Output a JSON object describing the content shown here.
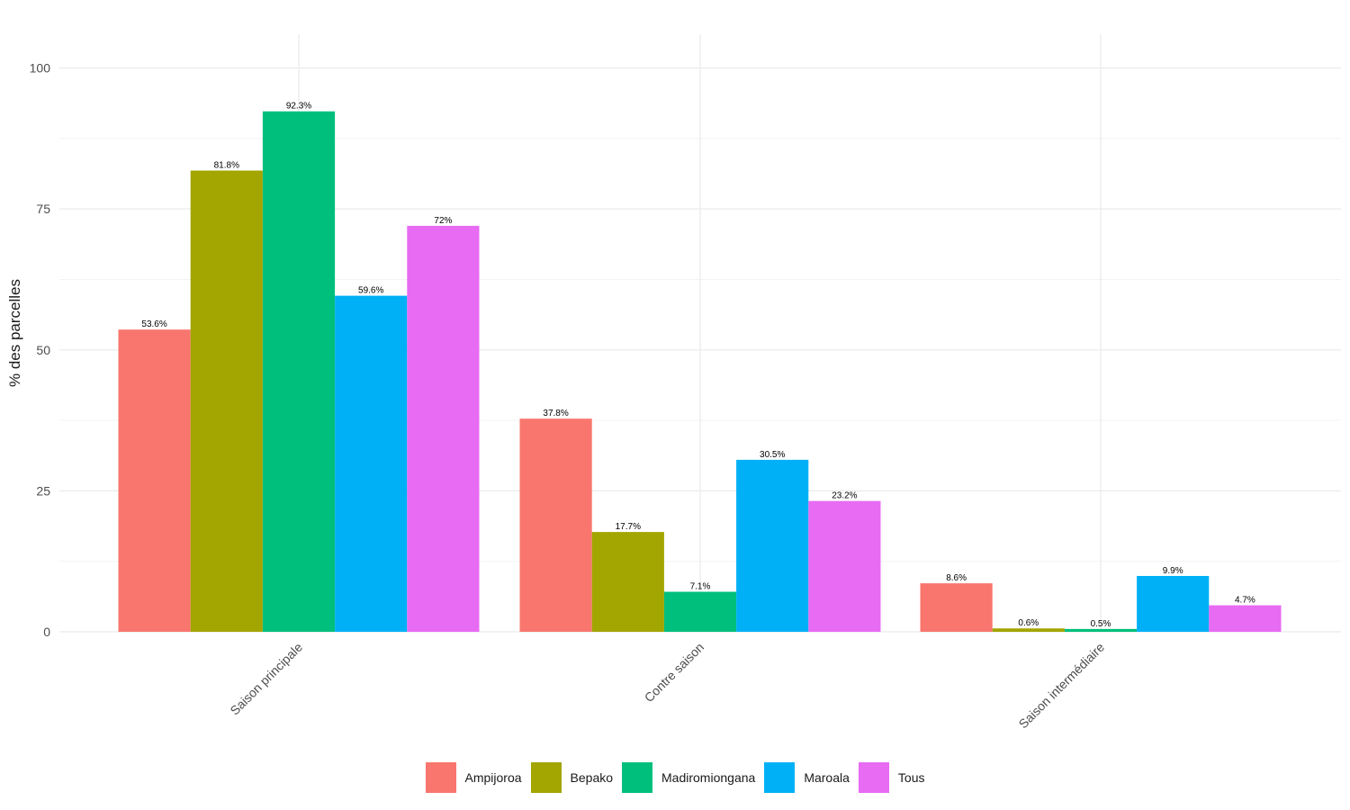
{
  "chart_data": {
    "type": "bar",
    "ylabel": "% des parcelles",
    "ylim": [
      0,
      106
    ],
    "yticks": [
      0,
      25,
      50,
      75,
      100
    ],
    "grid": true,
    "legend_position": "bottom",
    "categories": [
      "Saison principale",
      "Contre saison",
      "Saison intermédiaire"
    ],
    "series": [
      {
        "name": "Ampijoroa",
        "color": "#F8766D",
        "values": [
          53.6,
          37.8,
          8.6
        ],
        "labels": [
          "53.6%",
          "37.8%",
          "8.6%"
        ]
      },
      {
        "name": "Bepako",
        "color": "#A3A500",
        "values": [
          81.8,
          17.7,
          0.6
        ],
        "labels": [
          "81.8%",
          "17.7%",
          "0.6%"
        ]
      },
      {
        "name": "Madiromiongana",
        "color": "#00BF7D",
        "values": [
          92.3,
          7.1,
          0.5
        ],
        "labels": [
          "92.3%",
          "7.1%",
          "0.5%"
        ]
      },
      {
        "name": "Maroala",
        "color": "#00B0F6",
        "values": [
          59.6,
          30.5,
          9.9
        ],
        "labels": [
          "59.6%",
          "30.5%",
          "9.9%"
        ]
      },
      {
        "name": "Tous",
        "color": "#E76BF3",
        "values": [
          72,
          23.2,
          4.7
        ],
        "labels": [
          "72%",
          "23.2%",
          "4.7%"
        ]
      }
    ]
  }
}
